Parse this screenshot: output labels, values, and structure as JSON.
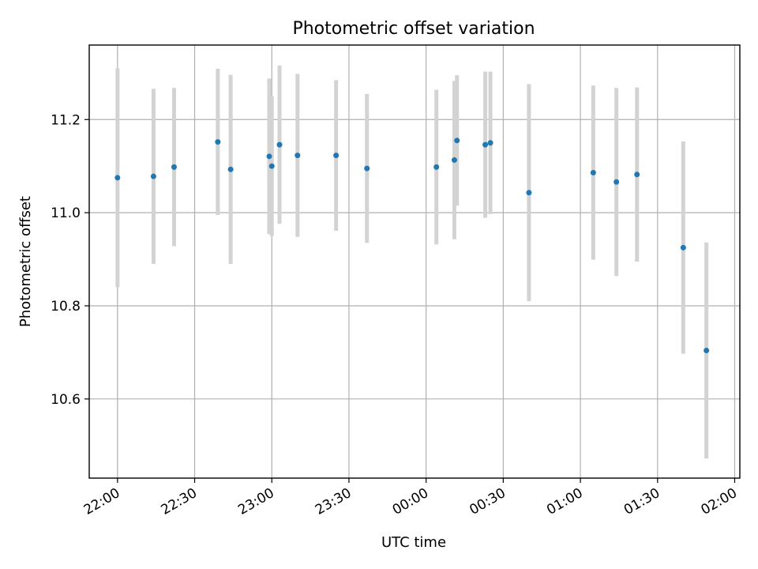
{
  "chart_data": {
    "type": "scatter",
    "title": "Photometric offset variation",
    "xlabel": "UTC time",
    "ylabel": "Photometric offset",
    "x_tick_labels": [
      "22:00",
      "22:30",
      "23:00",
      "23:30",
      "00:00",
      "00:30",
      "01:00",
      "01:30",
      "02:00"
    ],
    "x_tick_minutes": [
      0,
      30,
      60,
      90,
      120,
      150,
      180,
      210,
      240
    ],
    "xlim_minutes_after_2200": [
      -11,
      242
    ],
    "y_tick_labels": [
      "10.6",
      "10.8",
      "11.0",
      "11.2"
    ],
    "y_ticks": [
      10.6,
      10.8,
      11.0,
      11.2
    ],
    "ylim": [
      10.43,
      11.36
    ],
    "grid": true,
    "colors": {
      "marker": "#1f77b4",
      "errorbar": "#d3d3d3"
    },
    "points": [
      {
        "time": "22:00",
        "y": 11.075,
        "err": 0.235
      },
      {
        "time": "22:14",
        "y": 11.078,
        "err": 0.188
      },
      {
        "time": "22:22",
        "y": 11.098,
        "err": 0.17
      },
      {
        "time": "22:39",
        "y": 11.152,
        "err": 0.157
      },
      {
        "time": "22:44",
        "y": 11.093,
        "err": 0.203
      },
      {
        "time": "22:59",
        "y": 11.121,
        "err": 0.167
      },
      {
        "time": "23:00",
        "y": 11.1,
        "err": 0.15
      },
      {
        "time": "23:03",
        "y": 11.146,
        "err": 0.17
      },
      {
        "time": "23:10",
        "y": 11.123,
        "err": 0.175
      },
      {
        "time": "23:25",
        "y": 11.123,
        "err": 0.162
      },
      {
        "time": "23:37",
        "y": 11.095,
        "err": 0.16
      },
      {
        "time": "00:04",
        "y": 11.098,
        "err": 0.166
      },
      {
        "time": "00:11",
        "y": 11.113,
        "err": 0.17
      },
      {
        "time": "00:12",
        "y": 11.155,
        "err": 0.14
      },
      {
        "time": "00:23",
        "y": 11.146,
        "err": 0.157
      },
      {
        "time": "00:25",
        "y": 11.15,
        "err": 0.153
      },
      {
        "time": "00:40",
        "y": 11.043,
        "err": 0.233
      },
      {
        "time": "01:05",
        "y": 11.086,
        "err": 0.187
      },
      {
        "time": "01:14",
        "y": 11.066,
        "err": 0.202
      },
      {
        "time": "01:22",
        "y": 11.082,
        "err": 0.187
      },
      {
        "time": "01:40",
        "y": 10.925,
        "err": 0.228
      },
      {
        "time": "01:49",
        "y": 10.704,
        "err": 0.232
      }
    ]
  }
}
